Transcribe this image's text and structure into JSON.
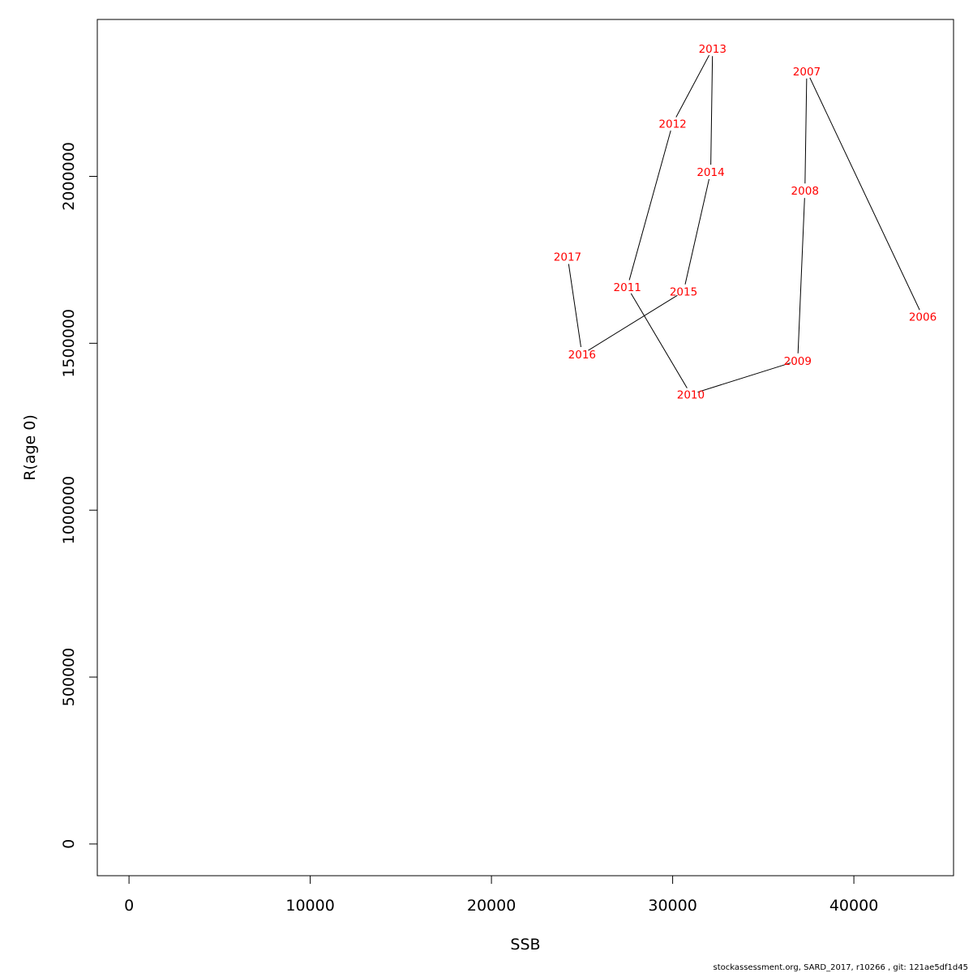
{
  "chart_data": {
    "type": "line",
    "xlabel": "SSB",
    "ylabel": "R(age 0)",
    "xlim": [
      -1750,
      45500
    ],
    "ylim": [
      -95000,
      2470000
    ],
    "x_ticks": [
      0,
      10000,
      20000,
      30000,
      40000
    ],
    "x_tick_labels": [
      "0",
      "10000",
      "20000",
      "30000",
      "40000"
    ],
    "y_ticks": [
      0,
      500000,
      1000000,
      1500000,
      2000000
    ],
    "y_tick_labels": [
      "0",
      "500000",
      "1000000",
      "1500000",
      "2000000"
    ],
    "grid": false,
    "line_color": "#000000",
    "label_color": "#ff0000",
    "points": [
      {
        "label": "2006",
        "ssb": 43800,
        "r": 1580000
      },
      {
        "label": "2007",
        "ssb": 37400,
        "r": 2315000
      },
      {
        "label": "2008",
        "ssb": 37300,
        "r": 1957000
      },
      {
        "label": "2009",
        "ssb": 36900,
        "r": 1448000
      },
      {
        "label": "2010",
        "ssb": 31000,
        "r": 1347000
      },
      {
        "label": "2011",
        "ssb": 27500,
        "r": 1668000
      },
      {
        "label": "2012",
        "ssb": 30000,
        "r": 2158000
      },
      {
        "label": "2013",
        "ssb": 32200,
        "r": 2382000
      },
      {
        "label": "2014",
        "ssb": 32100,
        "r": 2013000
      },
      {
        "label": "2015",
        "ssb": 30600,
        "r": 1655000
      },
      {
        "label": "2016",
        "ssb": 25000,
        "r": 1467000
      },
      {
        "label": "2017",
        "ssb": 24200,
        "r": 1759000
      }
    ]
  },
  "footer": "stockassessment.org, SARD_2017, r10266 , git: 121ae5df1d45"
}
